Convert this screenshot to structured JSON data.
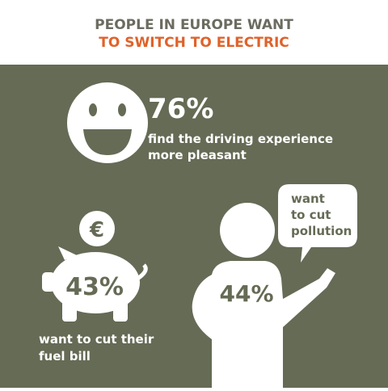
{
  "header": {
    "title_lines": [
      "PEOPLE IN EUROPE WANT",
      "TO SWITCH TO ELECTRIC"
    ]
  },
  "stats": [
    {
      "value": "76%",
      "lines": [
        "find the driving experience",
        "more pleasant"
      ]
    },
    {
      "value": "43%",
      "lines": [
        "want to cut their",
        "fuel bill"
      ],
      "icon_text": "€"
    },
    {
      "value": "44%",
      "lines": [
        "want",
        "to cut",
        "pollution"
      ]
    }
  ]
}
